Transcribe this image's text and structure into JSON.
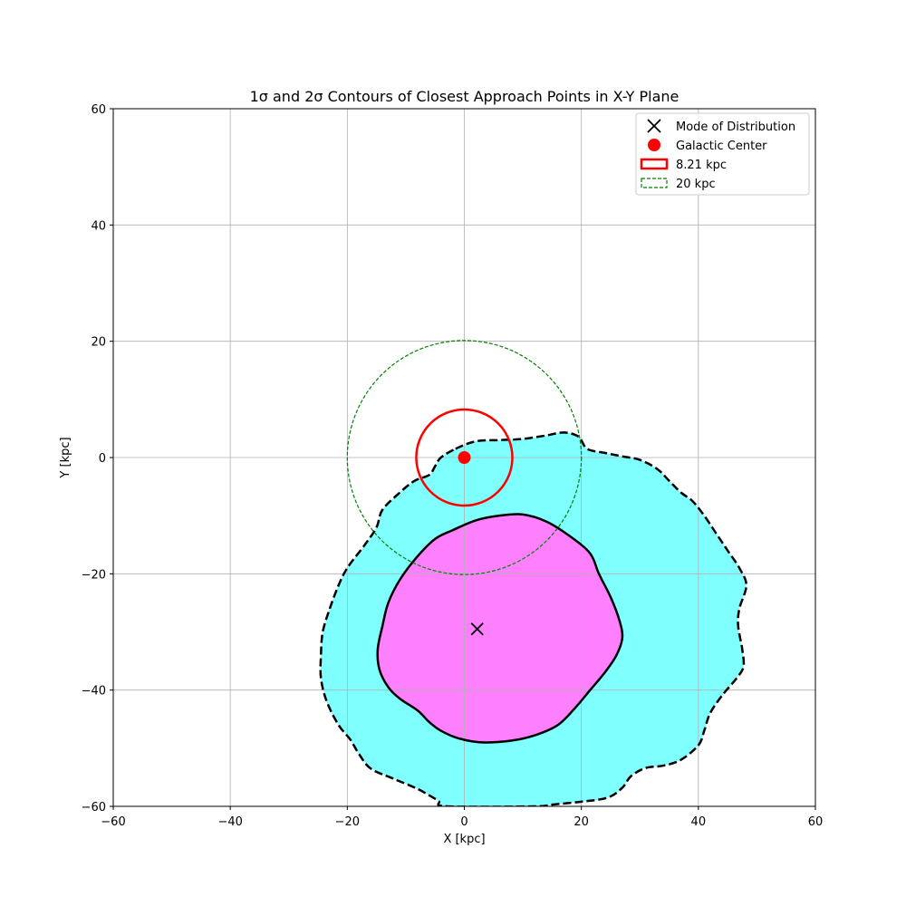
{
  "chart_data": {
    "type": "contour",
    "title": "1σ and 2σ Contours of Closest Approach Points in X-Y Plane",
    "xlabel": "X [kpc]",
    "ylabel": "Y [kpc]",
    "xlim": [
      -60,
      60
    ],
    "ylim": [
      -60,
      60
    ],
    "xticks": [
      -60,
      -40,
      -20,
      0,
      20,
      40,
      60
    ],
    "yticks": [
      -60,
      -40,
      -20,
      0,
      20,
      40,
      60
    ],
    "xtick_labels": [
      "−60",
      "−40",
      "−20",
      "0",
      "20",
      "40",
      "60"
    ],
    "ytick_labels": [
      "−60",
      "−40",
      "−20",
      "0",
      "20",
      "40",
      "60"
    ],
    "grid": true,
    "legend_position": "upper right",
    "legend": [
      {
        "label": "Mode of Distribution",
        "marker": "x",
        "color": "#000000"
      },
      {
        "label": "Galactic Center",
        "marker": "dot",
        "color": "#ff0000"
      },
      {
        "label": "8.21 kpc",
        "marker": "solid-patch",
        "color": "#ff0000"
      },
      {
        "label": "20 kpc",
        "marker": "dashed-patch",
        "color": "#008000"
      }
    ],
    "mode_point": {
      "x": 2.2,
      "y": -29.5
    },
    "galactic_center": {
      "x": 0,
      "y": 0
    },
    "circles": [
      {
        "name": "8.21 kpc",
        "radius": 8.21,
        "center": [
          0,
          0
        ],
        "color": "#ff0000",
        "style": "solid"
      },
      {
        "name": "20 kpc",
        "radius": 20,
        "center": [
          0,
          0
        ],
        "color": "#008000",
        "style": "dashed"
      }
    ],
    "contours": [
      {
        "name": "2σ",
        "fill": "#80ffff",
        "stroke": "#000000",
        "style": "dashed",
        "points": [
          [
            -1.5,
            1.5
          ],
          [
            2,
            2.8
          ],
          [
            6,
            3
          ],
          [
            10,
            3.2
          ],
          [
            14,
            3.8
          ],
          [
            17,
            4.3
          ],
          [
            19.5,
            3.6
          ],
          [
            21,
            1.5
          ],
          [
            24,
            0.8
          ],
          [
            27,
            0.2
          ],
          [
            30,
            -0.4
          ],
          [
            33,
            -2
          ],
          [
            35,
            -4
          ],
          [
            37,
            -6
          ],
          [
            39,
            -7.5
          ],
          [
            41,
            -10
          ],
          [
            43,
            -13
          ],
          [
            45,
            -16
          ],
          [
            47,
            -19
          ],
          [
            48.2,
            -22
          ],
          [
            47,
            -26
          ],
          [
            46.8,
            -29
          ],
          [
            47.5,
            -33
          ],
          [
            47.7,
            -36
          ],
          [
            46.5,
            -38
          ],
          [
            44,
            -41
          ],
          [
            42,
            -44
          ],
          [
            41,
            -47
          ],
          [
            40,
            -49.5
          ],
          [
            37,
            -52
          ],
          [
            34,
            -53
          ],
          [
            31,
            -53.4
          ],
          [
            28.5,
            -54.8
          ],
          [
            27,
            -56.8
          ],
          [
            24.5,
            -58.5
          ],
          [
            20,
            -59.2
          ],
          [
            15,
            -59.7
          ],
          [
            12,
            -60
          ],
          [
            -3,
            -60
          ],
          [
            -4.5,
            -59
          ],
          [
            -8,
            -57
          ],
          [
            -12,
            -55.3
          ],
          [
            -16,
            -53.5
          ],
          [
            -18,
            -51
          ],
          [
            -19.5,
            -48.5
          ],
          [
            -21.5,
            -46
          ],
          [
            -23.5,
            -42
          ],
          [
            -24.5,
            -38
          ],
          [
            -24.5,
            -34
          ],
          [
            -24.2,
            -30
          ],
          [
            -23,
            -26
          ],
          [
            -21.5,
            -22
          ],
          [
            -20,
            -19
          ],
          [
            -17,
            -15
          ],
          [
            -15,
            -12
          ],
          [
            -14,
            -9
          ],
          [
            -11,
            -6
          ],
          [
            -8.5,
            -4
          ],
          [
            -6,
            -3
          ],
          [
            -5,
            -1.5
          ],
          [
            -4,
            0
          ]
        ]
      },
      {
        "name": "1σ",
        "fill": "#ff80ff",
        "stroke": "#000000",
        "style": "solid",
        "points": [
          [
            -2,
            -12.5
          ],
          [
            2,
            -10.8
          ],
          [
            6,
            -10
          ],
          [
            10,
            -9.8
          ],
          [
            14,
            -11
          ],
          [
            18,
            -13.5
          ],
          [
            21.5,
            -16.5
          ],
          [
            23,
            -20
          ],
          [
            25,
            -24
          ],
          [
            26.5,
            -28
          ],
          [
            27,
            -31
          ],
          [
            26,
            -34
          ],
          [
            24,
            -37
          ],
          [
            21.5,
            -40
          ],
          [
            19,
            -43
          ],
          [
            16,
            -46
          ],
          [
            12,
            -47.8
          ],
          [
            8,
            -48.7
          ],
          [
            3,
            -49
          ],
          [
            -1,
            -48.3
          ],
          [
            -4,
            -47
          ],
          [
            -6,
            -45.5
          ],
          [
            -8,
            -43.5
          ],
          [
            -11,
            -41.5
          ],
          [
            -13,
            -39.5
          ],
          [
            -14.5,
            -36.5
          ],
          [
            -14.8,
            -33
          ],
          [
            -14,
            -29
          ],
          [
            -13,
            -25
          ],
          [
            -11,
            -21
          ],
          [
            -8,
            -17
          ],
          [
            -5,
            -14
          ]
        ]
      }
    ]
  }
}
